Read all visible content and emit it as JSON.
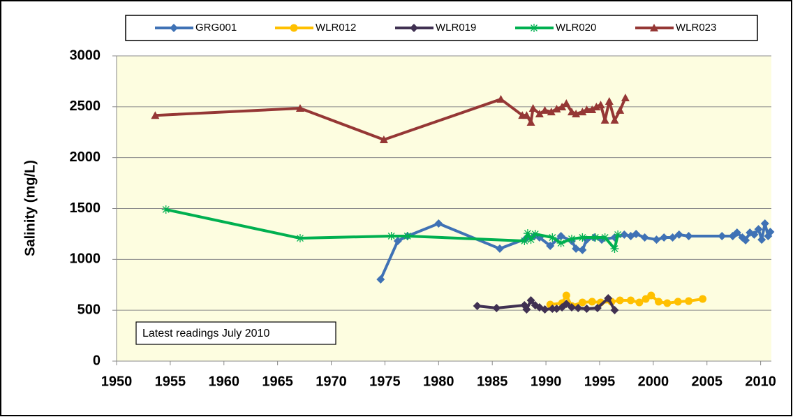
{
  "chart_data": {
    "type": "line",
    "y_label": "Salinity  (mg/L)",
    "annotation": "Latest readings  July 2010",
    "xlim": [
      1950,
      2011
    ],
    "xticks": [
      1950,
      1955,
      1960,
      1965,
      1970,
      1975,
      1980,
      1985,
      1990,
      1995,
      2000,
      2005,
      2010
    ],
    "ylim": [
      0,
      3000
    ],
    "yticks": [
      0,
      500,
      1000,
      1500,
      2000,
      2500,
      3000
    ],
    "grid": true,
    "legend": "top",
    "background": "#fdfde0",
    "series": [
      {
        "name": "GRG001",
        "color": "#3f72b5",
        "marker": "diamond",
        "x": [
          1974.6,
          1976.2,
          1977.1,
          1980.0,
          1985.7,
          1988.1,
          1988.9,
          1989.4,
          1990.4,
          1991.4,
          1992.4,
          1992.8,
          1993.4,
          1993.8,
          1994.5,
          1995.2,
          1996.4,
          1997.3,
          1997.9,
          1998.4,
          1999.2,
          2000.3,
          2001.0,
          2001.8,
          2002.4,
          2003.3,
          2006.4,
          2007.4,
          2007.8,
          2008.3,
          2008.6,
          2009.0,
          2009.4,
          2009.8,
          2010.1,
          2010.4,
          2010.7,
          2010.9
        ],
        "values": [
          803,
          1181,
          1229,
          1352,
          1105,
          1201,
          1229,
          1215,
          1133,
          1229,
          1181,
          1105,
          1092,
          1194,
          1215,
          1194,
          1215,
          1243,
          1229,
          1249,
          1215,
          1194,
          1215,
          1215,
          1243,
          1229,
          1229,
          1229,
          1263,
          1215,
          1188,
          1263,
          1243,
          1297,
          1194,
          1352,
          1229,
          1270
        ]
      },
      {
        "name": "WLR012",
        "color": "#ffc000",
        "marker": "circle",
        "x": [
          1990.4,
          1991.5,
          1991.9,
          1992.4,
          1993.4,
          1994.3,
          1995.1,
          1996.1,
          1996.9,
          1997.9,
          1998.7,
          1999.3,
          1999.8,
          2000.5,
          2001.3,
          2002.3,
          2003.3,
          2004.6
        ],
        "values": [
          556,
          570,
          645,
          542,
          577,
          584,
          577,
          584,
          597,
          597,
          577,
          611,
          645,
          584,
          570,
          584,
          590,
          611
        ]
      },
      {
        "name": "WLR019",
        "color": "#403152",
        "marker": "diamond",
        "x": [
          1983.6,
          1985.4,
          1988.0,
          1988.2,
          1988.6,
          1989.0,
          1989.4,
          1989.9,
          1990.6,
          1991.0,
          1991.5,
          1991.9,
          1992.4,
          1993.0,
          1993.8,
          1994.8,
          1995.8,
          1996.4
        ],
        "values": [
          542,
          522,
          549,
          508,
          597,
          549,
          529,
          508,
          515,
          515,
          529,
          563,
          529,
          522,
          515,
          522,
          618,
          501
        ]
      },
      {
        "name": "WLR020",
        "color": "#00b050",
        "marker": "star",
        "x": [
          1954.6,
          1967.1,
          1975.6,
          1977.1,
          1988.0,
          1988.3,
          1988.6,
          1989.0,
          1990.6,
          1991.4,
          1992.4,
          1993.4,
          1994.6,
          1995.5,
          1996.4,
          1996.7
        ],
        "values": [
          1490,
          1208,
          1229,
          1229,
          1181,
          1256,
          1194,
          1249,
          1215,
          1160,
          1201,
          1215,
          1215,
          1215,
          1105,
          1243
        ]
      },
      {
        "name": "WLR023",
        "color": "#953735",
        "marker": "triangle",
        "x": [
          1953.6,
          1967.1,
          1974.9,
          1985.8,
          1987.8,
          1988.2,
          1988.6,
          1988.8,
          1989.4,
          1989.9,
          1990.5,
          1991.0,
          1991.5,
          1991.9,
          1992.4,
          1992.8,
          1993.4,
          1993.8,
          1994.3,
          1994.7,
          1995.1,
          1995.5,
          1995.9,
          1996.4,
          1996.9,
          1997.4
        ],
        "values": [
          2415,
          2485,
          2176,
          2574,
          2416,
          2416,
          2348,
          2485,
          2430,
          2465,
          2450,
          2478,
          2499,
          2533,
          2450,
          2430,
          2450,
          2471,
          2471,
          2499,
          2519,
          2368,
          2554,
          2368,
          2465,
          2588
        ]
      }
    ]
  }
}
